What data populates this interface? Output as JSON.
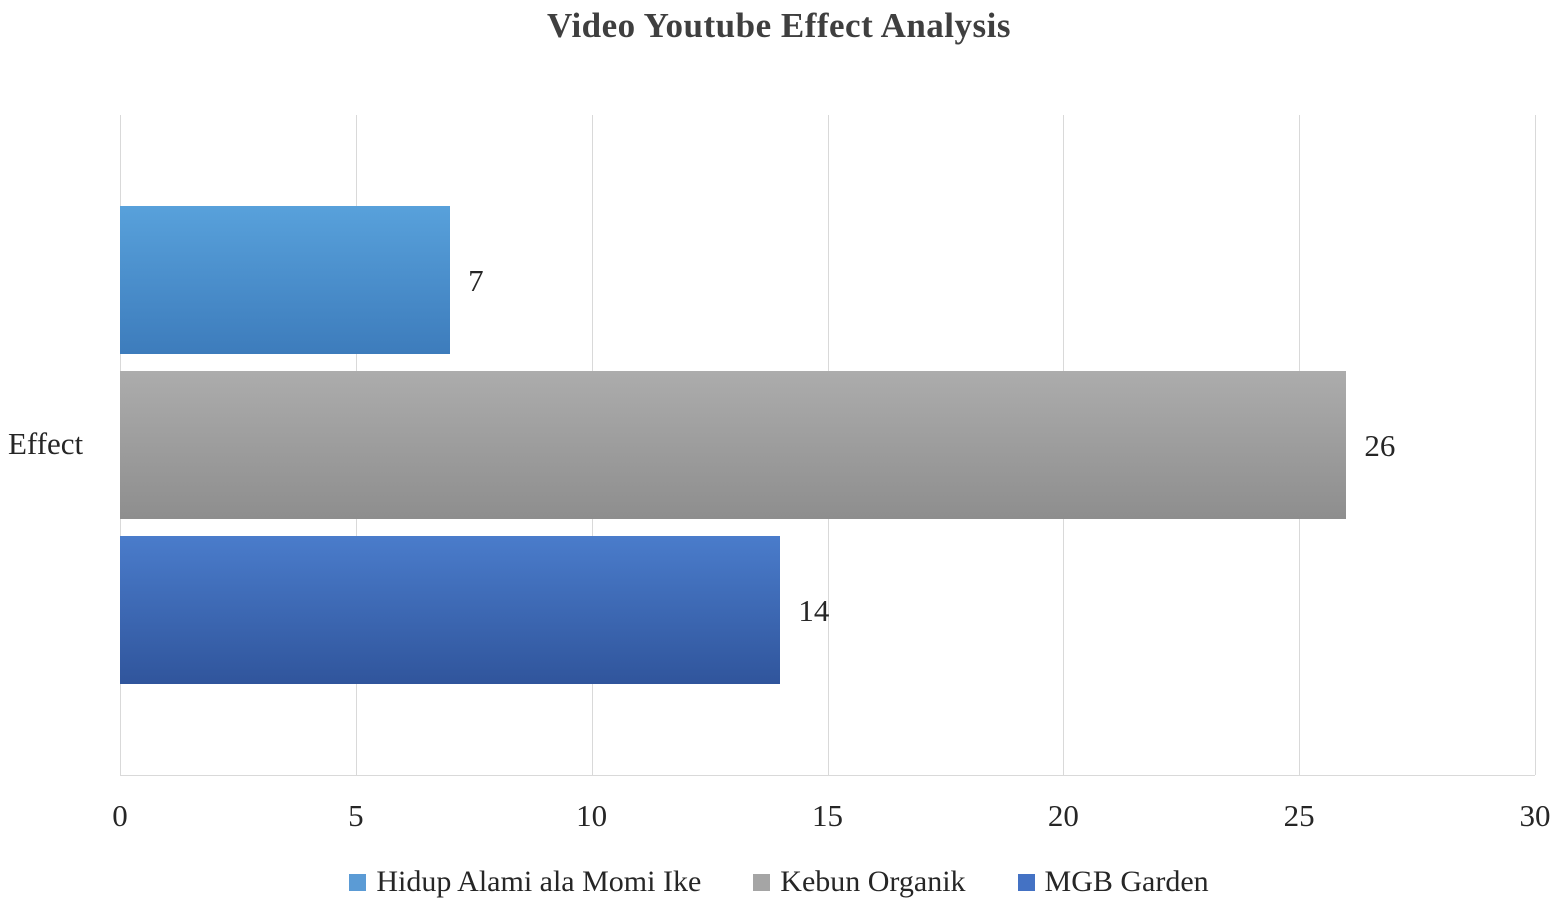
{
  "chart_data": {
    "type": "bar",
    "orientation": "horizontal",
    "title": "Video Youtube Effect Analysis",
    "category_label": "Effect",
    "categories": [
      "Effect"
    ],
    "series": [
      {
        "name": "Hidup Alami ala Momi Ike",
        "value": 7,
        "color": "#5B9BD5",
        "gradient_top": "#58A1DB",
        "gradient_bottom": "#3D7CBC"
      },
      {
        "name": "Kebun Organik",
        "value": 26,
        "color": "#A5A5A5",
        "gradient_top": "#ACACAC",
        "gradient_bottom": "#8E8E8E"
      },
      {
        "name": "MGB Garden",
        "value": 14,
        "color": "#4472C4",
        "gradient_top": "#4A7CCB",
        "gradient_bottom": "#30559C"
      }
    ],
    "data_labels": [
      "7",
      "26",
      "14"
    ],
    "xlim": [
      0,
      30
    ],
    "x_ticks": [
      "0",
      "5",
      "10",
      "15",
      "20",
      "25",
      "30"
    ],
    "grid": true,
    "legend_position": "bottom",
    "axis_color": "#D9D9D9",
    "text_color": "#262626",
    "title_color": "#3F3F3F"
  }
}
